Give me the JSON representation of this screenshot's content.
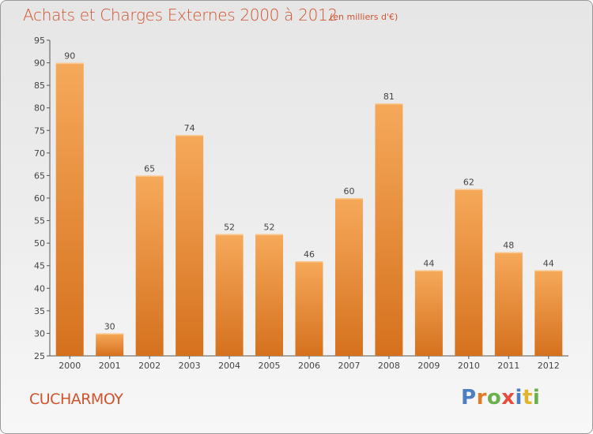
{
  "title": "Achats et Charges Externes 2000 à 2012",
  "unit_note": "(en milliers d'€)",
  "commune": "CUCHARMOY",
  "logo": {
    "text": "Proxiti",
    "letters": [
      {
        "ch": "P",
        "color": "#4a7fc1"
      },
      {
        "ch": "r",
        "color": "#e07a2a"
      },
      {
        "ch": "o",
        "color": "#6ab04c"
      },
      {
        "ch": "x",
        "color": "#e74c3c"
      },
      {
        "ch": "i",
        "color": "#4a7fc1"
      },
      {
        "ch": "t",
        "color": "#e0b52a"
      },
      {
        "ch": "i",
        "color": "#6ab04c"
      }
    ]
  },
  "colors": {
    "bar_top": "#f6a95a",
    "bar_bottom": "#d5711e",
    "title": "#d1532e",
    "axis": "#555555"
  },
  "chart_data": {
    "type": "bar",
    "categories": [
      "2000",
      "2001",
      "2002",
      "2003",
      "2004",
      "2005",
      "2006",
      "2007",
      "2008",
      "2009",
      "2010",
      "2011",
      "2012"
    ],
    "values": [
      90,
      30,
      65,
      74,
      52,
      52,
      46,
      60,
      81,
      44,
      62,
      48,
      44
    ],
    "title": "Achats et Charges Externes 2000 à 2012",
    "ylim": [
      25,
      95
    ],
    "yticks": [
      25,
      30,
      35,
      40,
      45,
      50,
      55,
      60,
      65,
      70,
      75,
      80,
      85,
      90,
      95
    ],
    "grid": false,
    "data_labels": true
  }
}
